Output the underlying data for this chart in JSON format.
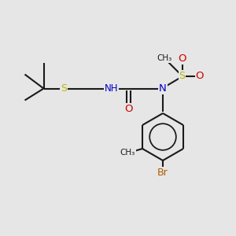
{
  "bg_color": "#e6e6e6",
  "bond_color": "#1a1a1a",
  "S_color": "#b8b800",
  "N_color": "#0000cc",
  "O_color": "#cc0000",
  "Br_color": "#b35900",
  "line_width": 1.5,
  "figsize": [
    3.0,
    3.0
  ],
  "dpi": 100,
  "xlim": [
    0,
    10
  ],
  "ylim": [
    0,
    10
  ]
}
